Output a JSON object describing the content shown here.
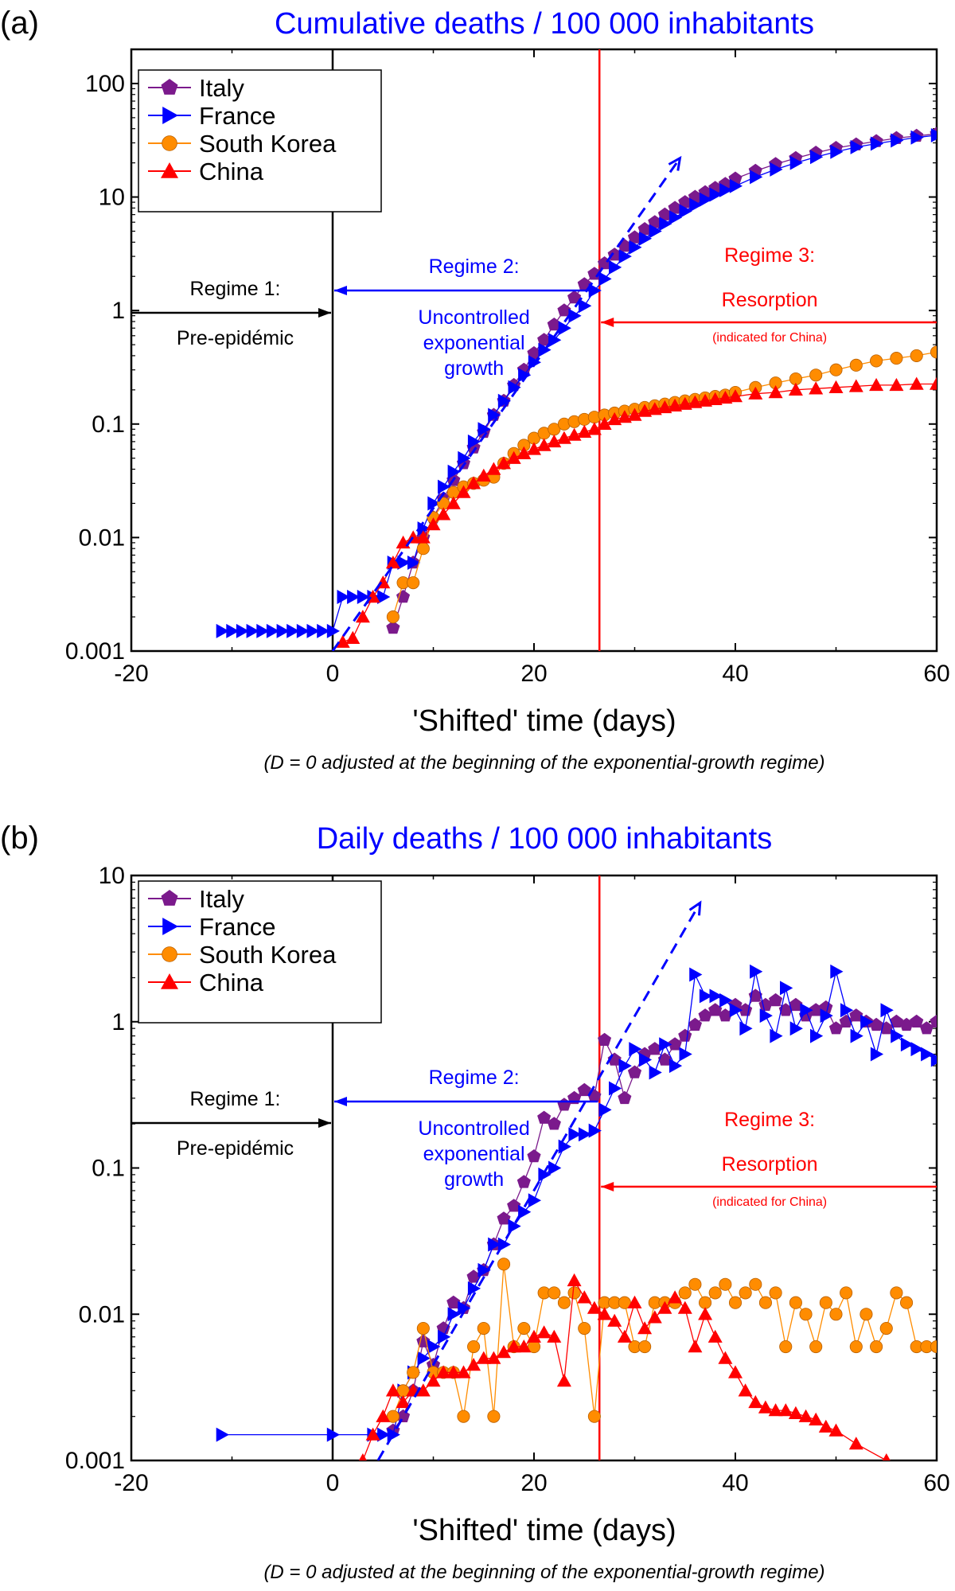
{
  "chart_data": [
    {
      "panel_label": "(a)",
      "type": "line",
      "title": "Cumulative deaths / 100 000 inhabitants",
      "xlabel": "'Shifted' time (days)",
      "caption": "(D = 0 adjusted at the beginning of the exponential-growth regime)",
      "xlim": [
        -20,
        60
      ],
      "ylim": [
        0.001,
        200
      ],
      "yscale": "log",
      "x_ticks": [
        -20,
        0,
        20,
        40,
        60
      ],
      "x_tick_labels": [
        "-20",
        "0",
        "20",
        "40",
        "60"
      ],
      "y_ticks": [
        0.001,
        0.01,
        0.1,
        1,
        10,
        100
      ],
      "y_tick_labels": [
        "0.001",
        "0.01",
        "0.1",
        "1",
        "10",
        "100"
      ],
      "legend_position": "top-left",
      "series": [
        {
          "name": "Italy",
          "color": "#7b1a8c",
          "marker": "pentagon",
          "x": [
            6,
            7,
            8,
            9,
            10,
            11,
            12,
            13,
            14,
            15,
            16,
            17,
            18,
            19,
            20,
            21,
            22,
            23,
            24,
            25,
            26,
            27,
            28,
            29,
            30,
            31,
            32,
            33,
            34,
            35,
            36,
            37,
            38,
            39,
            40,
            42,
            44,
            46,
            48,
            50,
            52,
            54,
            56,
            58,
            60
          ],
          "y": [
            0.0016,
            0.003,
            0.006,
            0.01,
            0.015,
            0.022,
            0.032,
            0.045,
            0.062,
            0.085,
            0.12,
            0.16,
            0.22,
            0.3,
            0.42,
            0.55,
            0.75,
            1.0,
            1.3,
            1.7,
            2.1,
            2.6,
            3.1,
            3.7,
            4.4,
            5.2,
            6.0,
            7.0,
            8.0,
            9.0,
            10.0,
            11.0,
            12.0,
            13.0,
            14.5,
            17.0,
            19.5,
            22.0,
            24.5,
            27.0,
            29.0,
            31.0,
            33.0,
            34.5,
            36.0
          ]
        },
        {
          "name": "France",
          "color": "#0000ff",
          "marker": "triangle-right",
          "x": [
            -11,
            -10,
            -9,
            -8,
            -7,
            -6,
            -5,
            -4,
            -3,
            -2,
            -1,
            0,
            1,
            2,
            3,
            4,
            5,
            6,
            7,
            8,
            9,
            10,
            11,
            12,
            13,
            14,
            15,
            16,
            17,
            18,
            19,
            20,
            21,
            22,
            23,
            24,
            25,
            26,
            27,
            28,
            29,
            30,
            31,
            32,
            33,
            34,
            35,
            36,
            37,
            38,
            39,
            40,
            42,
            44,
            46,
            48,
            50,
            52,
            54,
            56,
            58,
            60
          ],
          "y": [
            0.0015,
            0.0015,
            0.0015,
            0.0015,
            0.0015,
            0.0015,
            0.0015,
            0.0015,
            0.0015,
            0.0015,
            0.0015,
            0.0015,
            0.003,
            0.003,
            0.003,
            0.003,
            0.003,
            0.006,
            0.006,
            0.006,
            0.012,
            0.02,
            0.028,
            0.038,
            0.05,
            0.07,
            0.09,
            0.12,
            0.16,
            0.21,
            0.27,
            0.35,
            0.45,
            0.55,
            0.7,
            0.9,
            1.1,
            1.5,
            1.9,
            2.4,
            3.0,
            3.6,
            4.3,
            5.0,
            5.8,
            6.6,
            7.5,
            8.5,
            9.5,
            10.5,
            11.5,
            12.5,
            15.0,
            17.5,
            20.0,
            22.5,
            25.0,
            27.5,
            29.5,
            31.5,
            33.5,
            35.0
          ]
        },
        {
          "name": "South Korea",
          "color": "#ff8c00",
          "marker": "circle",
          "x": [
            6,
            7,
            8,
            9,
            10,
            11,
            12,
            13,
            14,
            15,
            16,
            17,
            18,
            19,
            20,
            21,
            22,
            23,
            24,
            25,
            26,
            27,
            28,
            29,
            30,
            31,
            32,
            33,
            34,
            35,
            36,
            37,
            38,
            39,
            40,
            42,
            44,
            46,
            48,
            50,
            52,
            54,
            56,
            58,
            60
          ],
          "y": [
            0.002,
            0.004,
            0.004,
            0.008,
            0.015,
            0.02,
            0.025,
            0.028,
            0.03,
            0.032,
            0.034,
            0.045,
            0.055,
            0.065,
            0.075,
            0.083,
            0.09,
            0.1,
            0.105,
            0.11,
            0.115,
            0.12,
            0.125,
            0.13,
            0.135,
            0.14,
            0.145,
            0.15,
            0.155,
            0.16,
            0.165,
            0.17,
            0.175,
            0.18,
            0.19,
            0.21,
            0.23,
            0.25,
            0.27,
            0.3,
            0.33,
            0.36,
            0.38,
            0.4,
            0.43
          ]
        },
        {
          "name": "China",
          "color": "#ff0000",
          "marker": "triangle-up",
          "x": [
            1,
            2,
            3,
            4,
            5,
            6,
            7,
            8,
            9,
            10,
            11,
            12,
            13,
            14,
            15,
            16,
            17,
            18,
            19,
            20,
            21,
            22,
            23,
            24,
            25,
            26,
            27,
            28,
            29,
            30,
            31,
            32,
            33,
            34,
            35,
            36,
            37,
            38,
            39,
            40,
            42,
            44,
            46,
            48,
            50,
            52,
            54,
            56,
            58,
            60
          ],
          "y": [
            0.0012,
            0.0013,
            0.002,
            0.003,
            0.004,
            0.006,
            0.009,
            0.01,
            0.01,
            0.013,
            0.016,
            0.02,
            0.025,
            0.03,
            0.035,
            0.04,
            0.045,
            0.05,
            0.055,
            0.06,
            0.065,
            0.07,
            0.075,
            0.08,
            0.085,
            0.09,
            0.1,
            0.11,
            0.115,
            0.12,
            0.13,
            0.135,
            0.14,
            0.145,
            0.15,
            0.155,
            0.16,
            0.165,
            0.17,
            0.175,
            0.185,
            0.19,
            0.2,
            0.205,
            0.21,
            0.215,
            0.22,
            0.22,
            0.225,
            0.225
          ]
        }
      ],
      "fit_line": {
        "x": [
          0,
          34.5
        ],
        "y": [
          0.001,
          22
        ],
        "color": "#0000ff",
        "style": "dashed"
      },
      "vlines": [
        {
          "x": 0,
          "color": "#000000"
        },
        {
          "x": 26.5,
          "color": "#ff0000"
        }
      ],
      "annotations": {
        "regime1": {
          "line1": "Regime 1:",
          "line2": "Pre-epidémic",
          "color": "#000000"
        },
        "regime2": {
          "line1": "Regime 2:",
          "line2": "Uncontrolled",
          "line3": "exponential",
          "line4": "growth",
          "color": "#0000ff"
        },
        "regime3": {
          "line1": "Regime 3:",
          "line2": "Resorption",
          "line3": "(indicated for China)",
          "color": "#ff0000"
        }
      }
    },
    {
      "panel_label": "(b)",
      "type": "line",
      "title": "Daily deaths / 100 000 inhabitants",
      "xlabel": "'Shifted' time (days)",
      "caption": "(D = 0 adjusted at the beginning of the exponential-growth regime)",
      "xlim": [
        -20,
        60
      ],
      "ylim": [
        0.001,
        10
      ],
      "yscale": "log",
      "x_ticks": [
        -20,
        0,
        20,
        40,
        60
      ],
      "x_tick_labels": [
        "-20",
        "0",
        "20",
        "40",
        "60"
      ],
      "y_ticks": [
        0.001,
        0.01,
        0.1,
        1,
        10
      ],
      "y_tick_labels": [
        "0.001",
        "0.01",
        "0.1",
        "1",
        "10"
      ],
      "legend_position": "top-left",
      "series": [
        {
          "name": "Italy",
          "color": "#7b1a8c",
          "marker": "pentagon",
          "x": [
            6,
            7,
            8,
            9,
            10,
            11,
            12,
            13,
            14,
            15,
            16,
            17,
            18,
            19,
            20,
            21,
            22,
            23,
            24,
            25,
            26,
            27,
            28,
            29,
            30,
            31,
            32,
            33,
            34,
            35,
            36,
            37,
            38,
            39,
            40,
            41,
            42,
            43,
            44,
            45,
            46,
            47,
            48,
            49,
            50,
            51,
            52,
            53,
            54,
            55,
            56,
            57,
            58,
            59,
            60
          ],
          "y": [
            0.0016,
            0.002,
            0.003,
            0.0065,
            0.0045,
            0.008,
            0.012,
            0.011,
            0.018,
            0.02,
            0.03,
            0.045,
            0.055,
            0.08,
            0.12,
            0.22,
            0.2,
            0.27,
            0.3,
            0.34,
            0.31,
            0.75,
            0.55,
            0.3,
            0.45,
            0.6,
            0.65,
            0.55,
            0.7,
            0.8,
            0.95,
            1.1,
            1.2,
            1.1,
            1.3,
            1.2,
            1.5,
            1.3,
            1.4,
            1.2,
            1.3,
            1.1,
            1.2,
            1.25,
            0.9,
            1.0,
            1.1,
            1.0,
            0.95,
            0.9,
            1.0,
            0.95,
            1.0,
            0.9,
            1.0
          ]
        },
        {
          "name": "France",
          "color": "#0000ff",
          "marker": "triangle-right",
          "x": [
            -11,
            0,
            4,
            5,
            6,
            7,
            8,
            9,
            10,
            11,
            12,
            13,
            14,
            15,
            16,
            17,
            18,
            19,
            20,
            21,
            22,
            23,
            24,
            25,
            26,
            27,
            28,
            29,
            30,
            31,
            32,
            33,
            34,
            35,
            36,
            37,
            38,
            39,
            40,
            41,
            42,
            43,
            44,
            45,
            46,
            47,
            48,
            49,
            50,
            51,
            52,
            53,
            54,
            55,
            56,
            57,
            58,
            59,
            60
          ],
          "y": [
            0.0015,
            0.0015,
            0.0015,
            0.0015,
            0.0015,
            0.003,
            0.004,
            0.005,
            0.006,
            0.007,
            0.01,
            0.011,
            0.015,
            0.02,
            0.03,
            0.03,
            0.04,
            0.05,
            0.06,
            0.09,
            0.1,
            0.14,
            0.17,
            0.17,
            0.18,
            0.25,
            0.35,
            0.5,
            0.65,
            0.55,
            0.45,
            0.7,
            0.5,
            0.6,
            2.1,
            1.5,
            1.5,
            1.4,
            1.2,
            0.9,
            2.2,
            1.1,
            0.8,
            1.7,
            0.9,
            1.2,
            0.8,
            1.1,
            2.2,
            1.2,
            0.8,
            1.0,
            0.6,
            1.2,
            0.8,
            0.7,
            0.65,
            0.6,
            0.55
          ]
        },
        {
          "name": "South Korea",
          "color": "#ff8c00",
          "marker": "circle",
          "x": [
            6,
            7,
            8,
            9,
            10,
            11,
            12,
            13,
            14,
            15,
            16,
            17,
            18,
            19,
            20,
            21,
            22,
            23,
            24,
            25,
            26,
            27,
            28,
            29,
            30,
            31,
            32,
            33,
            34,
            35,
            36,
            37,
            38,
            39,
            40,
            41,
            42,
            43,
            44,
            45,
            46,
            47,
            48,
            49,
            50,
            51,
            52,
            53,
            54,
            55,
            56,
            57,
            58,
            59,
            60
          ],
          "y": [
            0.002,
            0.003,
            0.004,
            0.008,
            0.004,
            0.004,
            0.004,
            0.002,
            0.006,
            0.008,
            0.002,
            0.022,
            0.006,
            0.008,
            0.006,
            0.014,
            0.014,
            0.012,
            0.014,
            0.008,
            0.002,
            0.012,
            0.012,
            0.012,
            0.006,
            0.006,
            0.012,
            0.012,
            0.012,
            0.014,
            0.016,
            0.012,
            0.014,
            0.016,
            0.012,
            0.014,
            0.016,
            0.012,
            0.014,
            0.006,
            0.012,
            0.01,
            0.006,
            0.012,
            0.01,
            0.014,
            0.006,
            0.01,
            0.006,
            0.008,
            0.014,
            0.012,
            0.006,
            0.006,
            0.006
          ]
        },
        {
          "name": "China",
          "color": "#ff0000",
          "marker": "triangle-up",
          "x": [
            3,
            4,
            5,
            6,
            7,
            8,
            9,
            10,
            11,
            12,
            13,
            14,
            15,
            16,
            17,
            18,
            19,
            20,
            21,
            22,
            23,
            24,
            25,
            26,
            27,
            28,
            29,
            30,
            31,
            32,
            33,
            34,
            35,
            36,
            37,
            38,
            39,
            40,
            41,
            42,
            43,
            44,
            45,
            46,
            47,
            48,
            49,
            50,
            52,
            55
          ],
          "y": [
            0.001,
            0.0015,
            0.002,
            0.003,
            0.0025,
            0.003,
            0.003,
            0.0035,
            0.004,
            0.004,
            0.004,
            0.0045,
            0.005,
            0.005,
            0.0055,
            0.006,
            0.006,
            0.007,
            0.0075,
            0.007,
            0.0035,
            0.017,
            0.013,
            0.011,
            0.01,
            0.009,
            0.007,
            0.012,
            0.008,
            0.0095,
            0.011,
            0.013,
            0.011,
            0.006,
            0.01,
            0.007,
            0.005,
            0.004,
            0.003,
            0.0025,
            0.0023,
            0.0022,
            0.0022,
            0.0021,
            0.002,
            0.0019,
            0.0017,
            0.0016,
            0.0013,
            0.001
          ]
        }
      ],
      "fit_line": {
        "x": [
          4.5,
          36.5
        ],
        "y": [
          0.001,
          6.5
        ],
        "color": "#0000ff",
        "style": "dashed"
      },
      "vlines": [
        {
          "x": 0,
          "color": "#000000"
        },
        {
          "x": 26.5,
          "color": "#ff0000"
        }
      ],
      "annotations": {
        "regime1": {
          "line1": "Regime 1:",
          "line2": "Pre-epidémic",
          "color": "#000000"
        },
        "regime2": {
          "line1": "Regime 2:",
          "line2": "Uncontrolled",
          "line3": "exponential",
          "line4": "growth",
          "color": "#0000ff"
        },
        "regime3": {
          "line1": "Regime 3:",
          "line2": "Resorption",
          "line3": "(indicated for China)",
          "color": "#ff0000"
        }
      }
    }
  ]
}
